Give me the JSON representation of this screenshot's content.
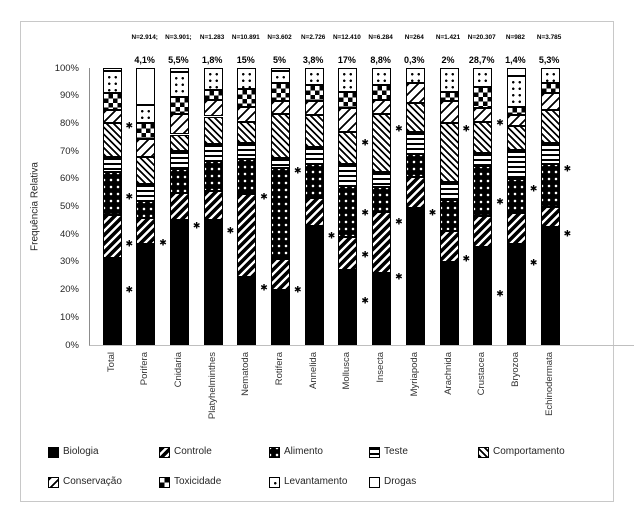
{
  "colors": {
    "figure_border": "#c8c8c8",
    "axis_line": "#8c8c8c",
    "pattern_fg": "#000000",
    "pattern_bg": "#ffffff",
    "text": "#262626"
  },
  "chart_data": {
    "type": "bar",
    "variant": "100%-stacked-vertical",
    "title": "",
    "xlabel": "",
    "ylabel": "Frequência Relativa",
    "ylim": [
      0,
      100
    ],
    "ytick_step": 10,
    "ytick_suffix": "%",
    "grid": false,
    "legend_position": "bottom",
    "significance_marker": "✱",
    "categories": [
      "Total",
      "Porifera",
      "Cnidaria",
      "Platyhelminthes",
      "Nematoda",
      "Rotifera",
      "Annelida",
      "Mollusca",
      "Insecta",
      "Myriapoda",
      "Arachnida",
      "Crustacea",
      "Bryozoa",
      "Echinodermata"
    ],
    "n_labels": [
      "",
      "N=2.914;",
      "N=3.901;",
      "N=1.283",
      "N=10.891",
      "N=3.602",
      "N=2.726",
      "N=12.410",
      "N=6.284",
      "N=264",
      "N=1.421",
      "N=20.307",
      "N=982",
      "N=3.785"
    ],
    "pct_labels": [
      "",
      "4,1%",
      "5,5%",
      "1,8%",
      "15%",
      "5%",
      "3,8%",
      "17%",
      "8,8%",
      "0,3%",
      "2%",
      "28,7%",
      "1,4%",
      "5,3%"
    ],
    "series": [
      {
        "name": "Biologia",
        "pattern": "solid-black",
        "values": [
          31.5,
          36.5,
          45,
          45,
          24.5,
          20,
          43,
          27,
          26,
          49.5,
          30,
          35.5,
          36.5,
          42.5
        ]
      },
      {
        "name": "Controle",
        "pattern": "diag-heavy",
        "values": [
          15.5,
          9.5,
          10,
          10.5,
          30,
          11,
          10,
          12,
          22,
          11,
          11,
          11,
          11,
          7.5
        ]
      },
      {
        "name": "Alimento",
        "pattern": "white-dots-on-black",
        "values": [
          15.5,
          6,
          8.5,
          11,
          12.5,
          33,
          12.5,
          18.5,
          9,
          8.5,
          11.5,
          18,
          12.5,
          15.5
        ]
      },
      {
        "name": "Teste",
        "pattern": "horizontal-lines",
        "values": [
          5.5,
          6,
          6.5,
          6,
          6,
          3.5,
          6,
          8,
          5.5,
          8,
          6.5,
          5,
          10.5,
          7.5
        ]
      },
      {
        "name": "Comportamento",
        "pattern": "diag-fine",
        "values": [
          12,
          10,
          6,
          10,
          7.5,
          16,
          11.5,
          11.5,
          21,
          10.5,
          21,
          11,
          8.5,
          12
        ]
      },
      {
        "name": "Conservação",
        "pattern": "diag-sparse",
        "values": [
          5,
          6.5,
          7.5,
          6,
          5.5,
          4.5,
          5,
          8.5,
          5,
          7,
          8,
          5,
          4,
          6
        ]
      },
      {
        "name": "Toxicidade",
        "pattern": "checkerboard",
        "values": [
          6,
          5.5,
          6,
          3.5,
          6.5,
          6.5,
          6,
          6,
          5.5,
          0,
          3.5,
          7.5,
          3,
          3.5
        ]
      },
      {
        "name": "Levantamento",
        "pattern": "black-dots-on-white",
        "values": [
          8,
          6.5,
          9,
          8,
          7.5,
          4.5,
          6,
          8.5,
          6,
          5.5,
          8.5,
          7,
          11,
          5.5
        ]
      },
      {
        "name": "Drogas",
        "pattern": "plain-white",
        "values": [
          1,
          13.5,
          1.5,
          0,
          0,
          1,
          0,
          0,
          0,
          0,
          0,
          0,
          3,
          0
        ]
      }
    ],
    "asterisk_heights_pct": [
      [
        79,
        53.5,
        36.5,
        20
      ],
      [
        37
      ],
      [
        43
      ],
      [
        41
      ],
      [
        53.5,
        20.5
      ],
      [
        63,
        20
      ],
      [
        39.5
      ],
      [
        73,
        47.5,
        32.5,
        16
      ],
      [
        78,
        44.5,
        24.5
      ],
      [
        47.5
      ],
      [
        78,
        31
      ],
      [
        80,
        51.5,
        18.5
      ],
      [
        56.5,
        29.5
      ],
      [
        63.5,
        40
      ]
    ]
  }
}
